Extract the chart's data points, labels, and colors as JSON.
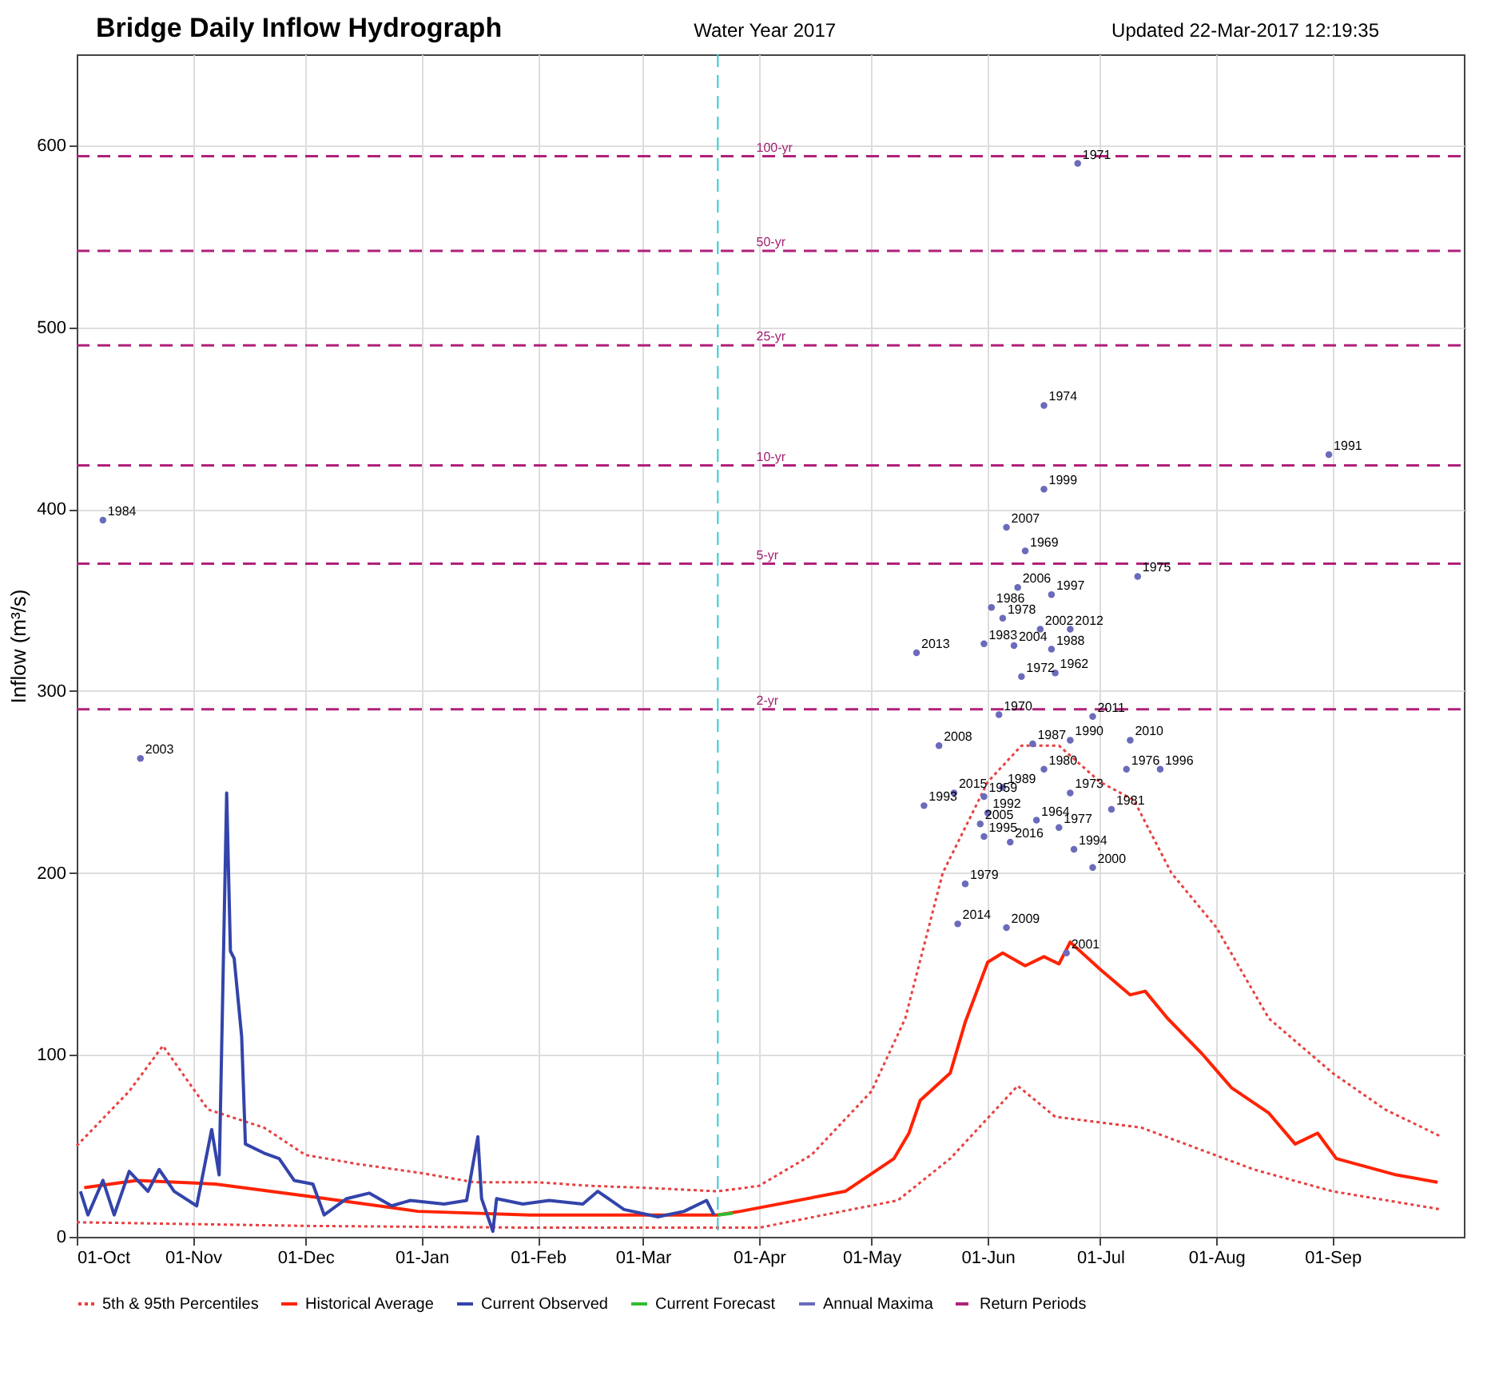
{
  "chart_data": {
    "type": "line",
    "title": "Bridge Daily Inflow Hydrograph",
    "subtitle": "Water Year 2017",
    "xlabel": null,
    "ylabel": "Inflow (m³/s)",
    "annotations": [
      "Updated 22-Mar-2017 12:19:35",
      {
        "text": "2-yr",
        "x": "2017-03-30",
        "y": 290
      },
      {
        "text": "5-yr",
        "x": "2017-03-30",
        "y": 370
      },
      {
        "text": "10-yr",
        "x": "2017-03-30",
        "y": 424
      },
      {
        "text": "25-yr",
        "x": "2017-03-30",
        "y": 490
      },
      {
        "text": "50-yr",
        "x": "2017-03-30",
        "y": 542
      },
      {
        "text": "100-yr",
        "x": "2017-03-30",
        "y": 594
      },
      {
        "text": "1984",
        "x": "2016-10-08",
        "y": 394
      },
      {
        "text": "2003",
        "x": "2016-10-18",
        "y": 263
      },
      {
        "text": "2013",
        "x": "2017-05-13",
        "y": 321
      },
      {
        "text": "1993",
        "x": "2017-05-15",
        "y": 237
      },
      {
        "text": "2008",
        "x": "2017-05-19",
        "y": 270
      },
      {
        "text": "2015",
        "x": "2017-05-23",
        "y": 244
      },
      {
        "text": "2014",
        "x": "2017-05-24",
        "y": 172
      },
      {
        "text": "1979",
        "x": "2017-05-26",
        "y": 194
      },
      {
        "text": "2005",
        "x": "2017-05-30",
        "y": 227
      },
      {
        "text": "1983",
        "x": "2017-05-31",
        "y": 326
      },
      {
        "text": "1959",
        "x": "2017-05-31",
        "y": 242
      },
      {
        "text": "1995",
        "x": "2017-05-31",
        "y": 220
      },
      {
        "text": "1992",
        "x": "2017-06-01",
        "y": 233
      },
      {
        "text": "1986",
        "x": "2017-06-02",
        "y": 346
      },
      {
        "text": "1970",
        "x": "2017-06-04",
        "y": 287
      },
      {
        "text": "1978",
        "x": "2017-06-05",
        "y": 340
      },
      {
        "text": "1989",
        "x": "2017-06-05",
        "y": 247
      },
      {
        "text": "2007",
        "x": "2017-06-06",
        "y": 390
      },
      {
        "text": "2009",
        "x": "2017-06-06",
        "y": 170
      },
      {
        "text": "2016",
        "x": "2017-06-07",
        "y": 217
      },
      {
        "text": "2004",
        "x": "2017-06-08",
        "y": 325
      },
      {
        "text": "2006",
        "x": "2017-06-09",
        "y": 357
      },
      {
        "text": "1972",
        "x": "2017-06-10",
        "y": 308
      },
      {
        "text": "1969",
        "x": "2017-06-11",
        "y": 377
      },
      {
        "text": "1987",
        "x": "2017-06-13",
        "y": 271
      },
      {
        "text": "1964",
        "x": "2017-06-14",
        "y": 229
      },
      {
        "text": "2002",
        "x": "2017-06-15",
        "y": 334
      },
      {
        "text": "1974",
        "x": "2017-06-16",
        "y": 457
      },
      {
        "text": "1999",
        "x": "2017-06-16",
        "y": 411
      },
      {
        "text": "1980",
        "x": "2017-06-16",
        "y": 257
      },
      {
        "text": "1997",
        "x": "2017-06-18",
        "y": 353
      },
      {
        "text": "1988",
        "x": "2017-06-18",
        "y": 323
      },
      {
        "text": "1962",
        "x": "2017-06-19",
        "y": 310
      },
      {
        "text": "1977",
        "x": "2017-06-20",
        "y": 225
      },
      {
        "text": "2001",
        "x": "2017-06-22",
        "y": 156
      },
      {
        "text": "2012",
        "x": "2017-06-23",
        "y": 334
      },
      {
        "text": "1990",
        "x": "2017-06-23",
        "y": 273
      },
      {
        "text": "1973",
        "x": "2017-06-23",
        "y": 244
      },
      {
        "text": "1994",
        "x": "2017-06-24",
        "y": 213
      },
      {
        "text": "1971",
        "x": "2017-06-25",
        "y": 590
      },
      {
        "text": "2011",
        "x": "2017-06-29",
        "y": 286
      },
      {
        "text": "2000",
        "x": "2017-06-29",
        "y": 203
      },
      {
        "text": "1981",
        "x": "2017-07-04",
        "y": 235
      },
      {
        "text": "1976",
        "x": "2017-07-08",
        "y": 257
      },
      {
        "text": "2010",
        "x": "2017-07-09",
        "y": 273
      },
      {
        "text": "1975",
        "x": "2017-07-11",
        "y": 363
      },
      {
        "text": "1996",
        "x": "2017-07-17",
        "y": 257
      },
      {
        "text": "1991",
        "x": "2017-08-31",
        "y": 430
      }
    ],
    "xlim": [
      "2016-10-01",
      "2017-10-06"
    ],
    "xticks": [
      {
        "value": "2016-10-01",
        "label": "01-Oct"
      },
      {
        "value": "2016-11-01",
        "label": "01-Nov"
      },
      {
        "value": "2016-12-01",
        "label": "01-Dec"
      },
      {
        "value": "2017-01-01",
        "label": "01-Jan"
      },
      {
        "value": "2017-02-01",
        "label": "01-Feb"
      },
      {
        "value": "2017-03-01",
        "label": "01-Mar"
      },
      {
        "value": "2017-04-01",
        "label": "01-Apr"
      },
      {
        "value": "2017-05-01",
        "label": "01-May"
      },
      {
        "value": "2017-06-01",
        "label": "01-Jun"
      },
      {
        "value": "2017-07-01",
        "label": "01-Jul"
      },
      {
        "value": "2017-08-01",
        "label": "01-Aug"
      },
      {
        "value": "2017-09-01",
        "label": "01-Sep"
      }
    ],
    "ylim": [
      0,
      650
    ],
    "yticks": [
      0,
      100,
      200,
      300,
      400,
      500,
      600
    ],
    "grid": true,
    "legend": "bottom",
    "ref_lines": [
      {
        "axis": "x",
        "value": "2017-03-21",
        "color": "#33cccc",
        "line_style": "dashed"
      }
    ],
    "series": [
      {
        "name": "5th & 95th Percentiles",
        "type": "line",
        "color": "#e84040",
        "line_style": "dotted",
        "x": [
          "2016-10-01",
          "2016-10-15",
          "2016-10-24",
          "2016-11-05",
          "2016-11-20",
          "2016-12-01",
          "2016-12-15",
          "2017-01-01",
          "2017-01-15",
          "2017-02-01",
          "2017-02-15",
          "2017-03-01",
          "2017-03-21",
          "2017-04-01",
          "2017-04-15",
          "2017-05-01",
          "2017-05-10",
          "2017-05-20",
          "2017-06-01",
          "2017-06-10",
          "2017-06-20",
          "2017-07-01",
          "2017-07-10",
          "2017-07-20",
          "2017-08-01",
          "2017-08-15",
          "2017-09-01",
          "2017-09-15",
          "2017-09-30"
        ],
        "values": [
          50,
          80,
          105,
          70,
          60,
          45,
          40,
          35,
          30,
          30,
          28,
          27,
          25,
          28,
          45,
          80,
          120,
          200,
          250,
          270,
          270,
          250,
          240,
          200,
          170,
          120,
          90,
          70,
          55
        ]
      },
      {
        "type": "line",
        "color": "#e84040",
        "line_style": "dotted",
        "x": [
          "2016-10-01",
          "2016-12-01",
          "2017-02-01",
          "2017-04-01",
          "2017-05-08",
          "2017-05-22",
          "2017-06-09",
          "2017-06-19",
          "2017-07-12",
          "2017-08-11",
          "2017-09-01",
          "2017-09-30"
        ],
        "values": [
          8,
          6,
          5,
          5,
          20,
          43,
          83,
          66,
          60,
          37,
          25,
          15
        ]
      },
      {
        "name": "Historical Average",
        "type": "line",
        "color": "#ff2200",
        "line_style": "solid",
        "x": [
          "2016-10-03",
          "2016-10-17",
          "2016-11-07",
          "2016-12-03",
          "2016-12-31",
          "2017-01-30",
          "2017-03-01",
          "2017-03-21",
          "2017-03-27",
          "2017-04-24",
          "2017-05-07",
          "2017-05-11",
          "2017-05-14",
          "2017-05-22",
          "2017-05-26",
          "2017-06-01",
          "2017-06-05",
          "2017-06-11",
          "2017-06-16",
          "2017-06-20",
          "2017-06-23",
          "2017-07-01",
          "2017-07-09",
          "2017-07-13",
          "2017-07-19",
          "2017-07-28",
          "2017-08-05",
          "2017-08-15",
          "2017-08-22",
          "2017-08-28",
          "2017-09-02",
          "2017-09-18",
          "2017-09-29"
        ],
        "values": [
          27,
          31,
          29,
          22,
          14,
          12,
          12,
          12,
          14,
          25,
          43,
          57,
          75,
          90,
          118,
          151,
          156,
          149,
          154,
          150,
          162,
          147,
          133,
          135,
          120,
          101,
          82,
          68,
          51,
          57,
          43,
          34,
          30
        ]
      },
      {
        "name": "Current Observed",
        "type": "line",
        "color": "#3344aa",
        "line_style": "solid",
        "x": [
          "2016-10-02",
          "2016-10-04",
          "2016-10-08",
          "2016-10-11",
          "2016-10-15",
          "2016-10-20",
          "2016-10-23",
          "2016-10-27",
          "2016-11-02",
          "2016-11-06",
          "2016-11-08",
          "2016-11-10",
          "2016-11-11",
          "2016-11-12",
          "2016-11-14",
          "2016-11-15",
          "2016-11-20",
          "2016-11-24",
          "2016-11-28",
          "2016-12-03",
          "2016-12-06",
          "2016-12-12",
          "2016-12-18",
          "2016-12-24",
          "2016-12-29",
          "2017-01-07",
          "2017-01-13",
          "2017-01-16",
          "2017-01-17",
          "2017-01-20",
          "2017-01-21",
          "2017-01-28",
          "2017-02-04",
          "2017-02-13",
          "2017-02-17",
          "2017-02-24",
          "2017-03-05",
          "2017-03-12",
          "2017-03-18",
          "2017-03-20"
        ],
        "values": [
          25,
          12,
          31,
          12,
          36,
          25,
          37,
          25,
          17,
          59,
          34,
          244,
          157,
          153,
          110,
          51,
          46,
          43,
          31,
          29,
          12,
          21,
          24,
          17,
          20,
          18,
          20,
          55,
          21,
          3,
          21,
          18,
          20,
          18,
          25,
          15,
          11,
          14,
          20,
          12
        ]
      },
      {
        "name": "Current Forecast",
        "type": "line",
        "color": "#33bb33",
        "line_style": "solid",
        "x": [
          "2017-03-21",
          "2017-03-25"
        ],
        "values": [
          12,
          13
        ]
      },
      {
        "name": "Annual Maxima",
        "type": "scatter",
        "marker": "circle",
        "color": "#6b6bbb",
        "x": [
          "2016-10-08",
          "2016-10-18",
          "2017-05-13",
          "2017-05-15",
          "2017-05-19",
          "2017-05-23",
          "2017-05-24",
          "2017-05-26",
          "2017-05-30",
          "2017-05-31",
          "2017-05-31",
          "2017-05-31",
          "2017-06-01",
          "2017-06-02",
          "2017-06-04",
          "2017-06-05",
          "2017-06-05",
          "2017-06-06",
          "2017-06-06",
          "2017-06-07",
          "2017-06-08",
          "2017-06-09",
          "2017-06-10",
          "2017-06-11",
          "2017-06-13",
          "2017-06-14",
          "2017-06-15",
          "2017-06-16",
          "2017-06-16",
          "2017-06-16",
          "2017-06-18",
          "2017-06-18",
          "2017-06-19",
          "2017-06-20",
          "2017-06-22",
          "2017-06-23",
          "2017-06-23",
          "2017-06-23",
          "2017-06-24",
          "2017-06-25",
          "2017-06-29",
          "2017-06-29",
          "2017-07-04",
          "2017-07-08",
          "2017-07-09",
          "2017-07-11",
          "2017-07-17",
          "2017-08-31"
        ],
        "values": [
          394,
          263,
          321,
          237,
          270,
          244,
          172,
          194,
          227,
          326,
          242,
          220,
          233,
          346,
          287,
          340,
          247,
          390,
          170,
          217,
          325,
          357,
          308,
          377,
          271,
          229,
          334,
          457,
          411,
          257,
          353,
          323,
          310,
          225,
          156,
          334,
          273,
          244,
          213,
          590,
          286,
          203,
          235,
          257,
          273,
          363,
          257,
          430
        ]
      },
      {
        "name": "Return Periods",
        "type": "line",
        "color": "#b0207a",
        "line_style": "dashed",
        "x": [
          "2016-10-01",
          "2017-10-06"
        ],
        "values": [
          290,
          290
        ]
      },
      {
        "type": "line",
        "color": "#b0207a",
        "line_style": "dashed",
        "x": [
          "2016-10-01",
          "2017-10-06"
        ],
        "values": [
          370,
          370
        ]
      },
      {
        "type": "line",
        "color": "#b0207a",
        "line_style": "dashed",
        "x": [
          "2016-10-01",
          "2017-10-06"
        ],
        "values": [
          424,
          424
        ]
      },
      {
        "type": "line",
        "color": "#b0207a",
        "line_style": "dashed",
        "x": [
          "2016-10-01",
          "2017-10-06"
        ],
        "values": [
          490,
          490
        ]
      },
      {
        "type": "line",
        "color": "#b0207a",
        "line_style": "dashed",
        "x": [
          "2016-10-01",
          "2017-10-06"
        ],
        "values": [
          542,
          542
        ]
      },
      {
        "type": "line",
        "color": "#b0207a",
        "line_style": "dashed",
        "x": [
          "2016-10-01",
          "2017-10-06"
        ],
        "values": [
          594,
          594
        ]
      }
    ]
  }
}
